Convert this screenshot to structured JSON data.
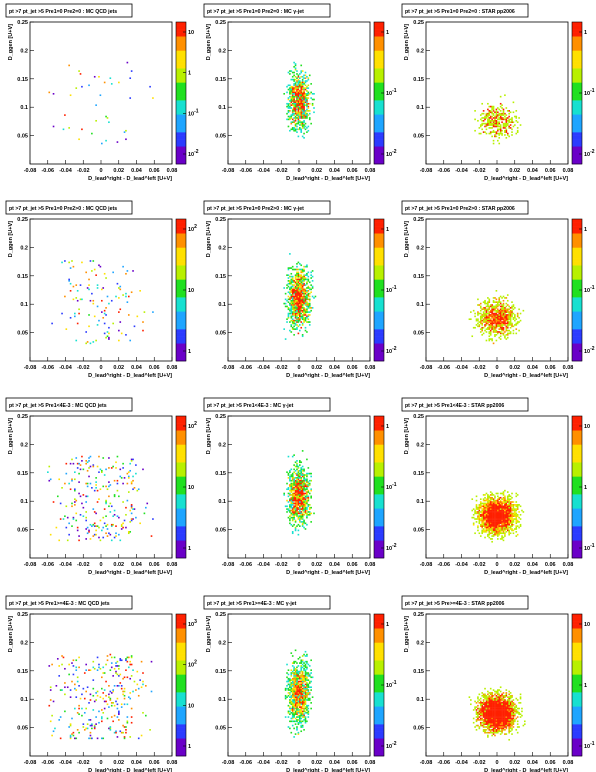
{
  "panels": [
    {
      "title": "pt >7  pt_jet >5 Pre1=0 Pre2=0 : MC QCD jets",
      "sample": "qcd",
      "log_ticks": [
        "10",
        "1",
        "10^{-1}",
        "10^{-2}"
      ],
      "ylabel": "D_ggen [U+V]"
    },
    {
      "title": "pt >7  pt_jet >5 Pre1=0 Pre2=0 : MC γ-jet",
      "sample": "gamma",
      "log_ticks": [
        "1",
        "10^{-1}",
        "10^{-2}"
      ],
      "ylabel": "D_ggen [U+V]"
    },
    {
      "title": "pt >7  pt_jet >5 Pre1=0 Pre2=0 : STAR pp2006",
      "sample": "star",
      "log_ticks": [
        "1",
        "10^{-1}",
        "10^{-2}"
      ],
      "ylabel": "D_ggen [U+V]"
    },
    {
      "title": "pt >7  pt_jet >5 Pre1=0 Pre2>0 : MC QCD jets",
      "sample": "qcd",
      "log_ticks": [
        "10^{2}",
        "10",
        "1"
      ],
      "ylabel": "D_ggen [U+V]"
    },
    {
      "title": "pt >7  pt_jet >5 Pre1=0 Pre2>0 : MC γ-jet",
      "sample": "gamma",
      "log_ticks": [
        "1",
        "10^{-1}",
        "10^{-2}"
      ],
      "ylabel": "D_ggen [U+V]"
    },
    {
      "title": "pt >7  pt_jet >5 Pre1=0 Pre2>0 : STAR pp2006",
      "sample": "star",
      "log_ticks": [
        "1",
        "10^{-1}",
        "10^{-2}"
      ],
      "ylabel": "D_ggen [U+V]"
    },
    {
      "title": "pt >7  pt_jet >5 Pre1<4E-3 : MC QCD jets",
      "sample": "qcd",
      "log_ticks": [
        "10^{2}",
        "10",
        "1"
      ],
      "ylabel": "D_ggen [U+V]"
    },
    {
      "title": "pt >7  pt_jet >5 Pre1<4E-3 : MC γ-jet",
      "sample": "gamma",
      "log_ticks": [
        "1",
        "10^{-1}",
        "10^{-2}"
      ],
      "ylabel": "D_ggen [U+V]"
    },
    {
      "title": "pt >7  pt_jet >5 Pre1<4E-3 : STAR pp2006",
      "sample": "star",
      "log_ticks": [
        "10",
        "1",
        "10^{-1}"
      ],
      "ylabel": "D_ggen [U+V]"
    },
    {
      "title": "pt >7  pt_jet >5 Pre1>=4E-3 : MC QCD jets",
      "sample": "qcd",
      "log_ticks": [
        "10^{3}",
        "10^{2}",
        "10",
        "1"
      ],
      "ylabel": "D_ggen [U+V]"
    },
    {
      "title": "pt >7  pt_jet >5 Pre1>=4E-3 : MC γ-jet",
      "sample": "gamma",
      "log_ticks": [
        "1",
        "10^{-1}",
        "10^{-2}"
      ],
      "ylabel": "D_ggen [U+V]"
    },
    {
      "title": "pt >7  pt_jet >5 Pre>=4E-3 : STAR pp2006",
      "sample": "star",
      "log_ticks": [
        "10",
        "1",
        "10^{-1}"
      ],
      "ylabel": "D_ggen [U+V]"
    }
  ],
  "chart_data": {
    "type": "heatmap",
    "xlabel": "D_lead^right - D_lead^left [U+V]",
    "x_ticks": [
      "-0.08",
      "-0.06",
      "-0.04",
      "-0.02",
      "0",
      "0.02",
      "0.04",
      "0.06",
      "0.08"
    ],
    "y_ticks": [
      "0.05",
      "0.1",
      "0.15",
      "0.2",
      "0.25"
    ],
    "xlim": [
      -0.08,
      0.08
    ],
    "ylim": [
      0.0,
      0.25
    ],
    "z_scale": "log",
    "palette": [
      "#6a00c8",
      "#2b3bff",
      "#1fa5ff",
      "#17e0d0",
      "#20e020",
      "#b8f000",
      "#ffe000",
      "#ff9000",
      "#ff2000"
    ],
    "colors": {
      "background": "#ffffff",
      "frame": "#000000"
    }
  }
}
